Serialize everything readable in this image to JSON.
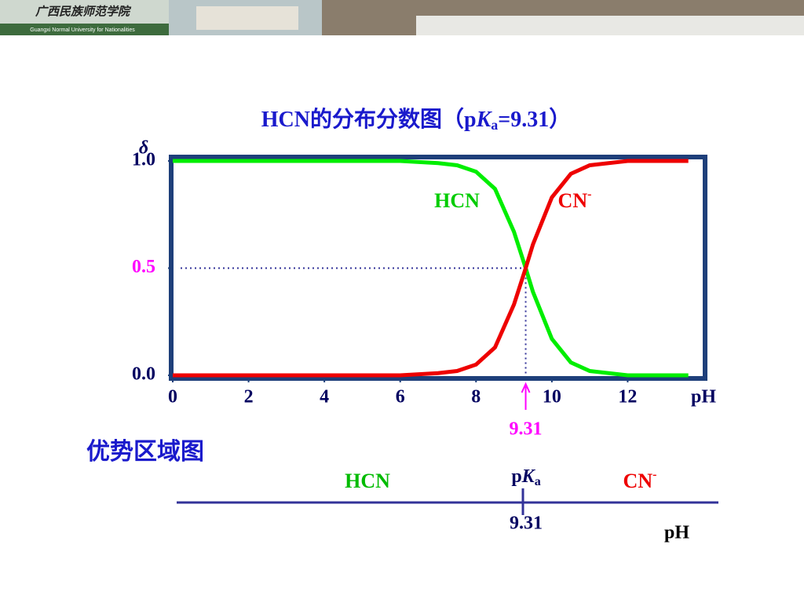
{
  "header": {
    "school_name_cn": "广西民族师范学院",
    "school_name_en": "Guangxi Normal University for Nationalities"
  },
  "chart_data": {
    "type": "line",
    "title_parts": [
      "HCN的分布分数图（p",
      "K",
      "a",
      "=9.31）"
    ],
    "y_label": "δ",
    "x_label": "pH",
    "x": [
      0,
      2,
      4,
      6,
      7,
      7.5,
      8,
      8.5,
      9,
      9.31,
      9.5,
      10,
      10.5,
      11,
      12,
      13,
      13.6
    ],
    "series": [
      {
        "name": "HCN",
        "color": "#00ee00",
        "values": [
          1,
          1,
          1,
          1,
          0.99,
          0.98,
          0.95,
          0.87,
          0.67,
          0.5,
          0.39,
          0.17,
          0.06,
          0.02,
          0,
          0,
          0
        ]
      },
      {
        "name": "CN",
        "superscript": "-",
        "color": "#ee0000",
        "values": [
          0,
          0,
          0,
          0,
          0.01,
          0.02,
          0.05,
          0.13,
          0.33,
          0.5,
          0.61,
          0.83,
          0.94,
          0.98,
          1,
          1,
          1
        ]
      }
    ],
    "xlim": [
      0,
      14
    ],
    "ylim": [
      0,
      1
    ],
    "xticks": [
      0,
      2,
      4,
      6,
      8,
      10,
      12
    ],
    "yticks": [
      {
        "value": 0,
        "label": "0.0"
      },
      {
        "value": 0.5,
        "label": "0.5"
      },
      {
        "value": 1,
        "label": "1.0"
      }
    ],
    "pka": 9.31,
    "pka_label": "9.31",
    "pka_delta": 0.5,
    "highlight_color": "#ff00ff"
  },
  "dominance_diagram": {
    "title": "优势区域图",
    "left": "HCN",
    "right_parts": [
      "CN",
      "-"
    ],
    "marker_parts": [
      "p",
      "K",
      "a"
    ],
    "marker_value": "9.31",
    "axis_label": "pH"
  }
}
